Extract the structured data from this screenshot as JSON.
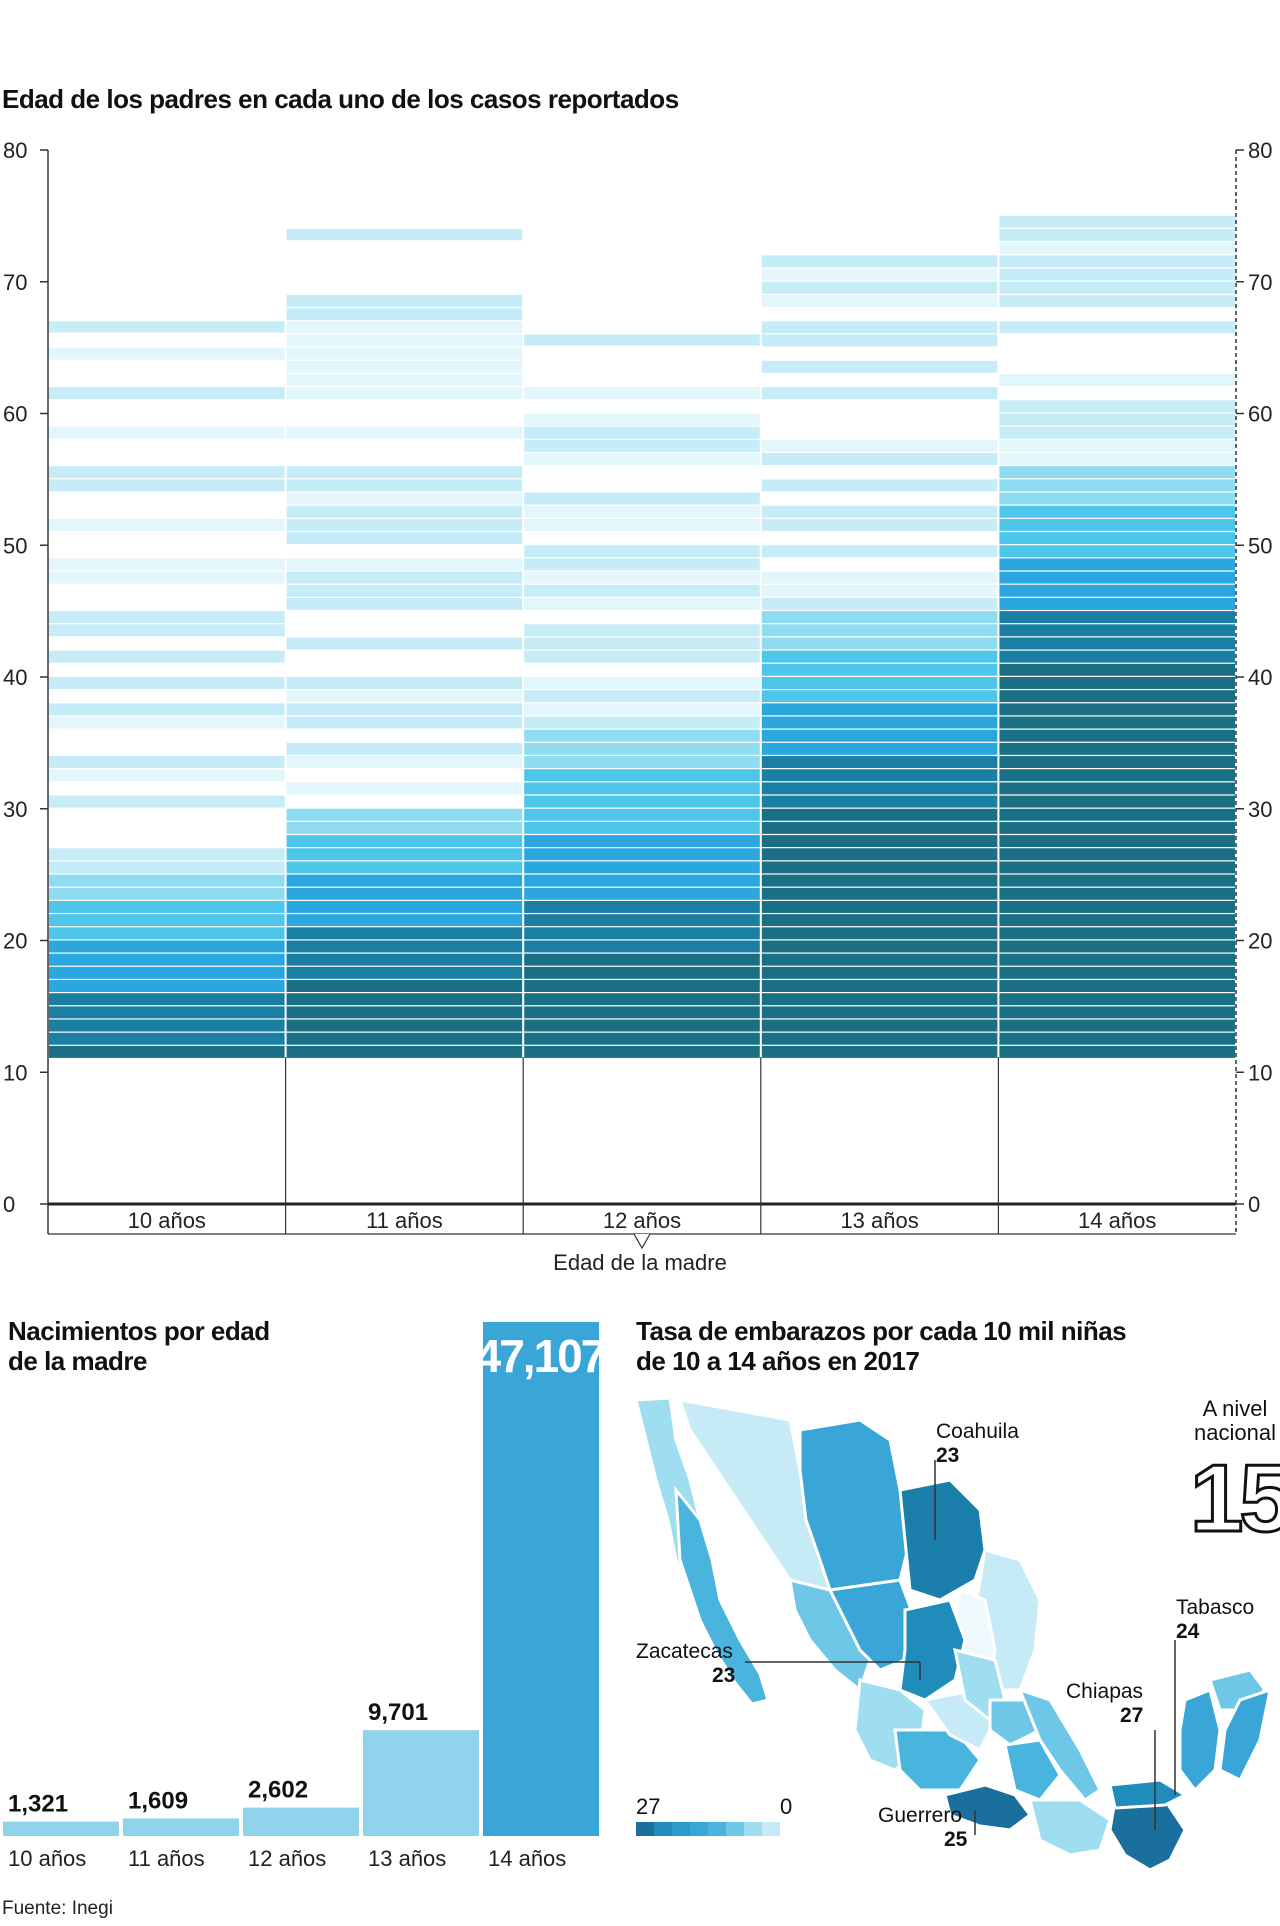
{
  "top_chart": {
    "title": "Edad de los padres en cada uno de los casos reportados",
    "xlabel": "Edad de la madre",
    "yticks": [
      "0",
      "10",
      "20",
      "30",
      "40",
      "50",
      "60",
      "70",
      "80"
    ]
  },
  "bottom_chart": {
    "title_line1": "Nacimientos por edad",
    "title_line2": "de la madre",
    "value_labels": [
      "1,321",
      "1,609",
      "2,602",
      "9,701",
      "47,107"
    ],
    "category_labels": [
      "10 años",
      "11 años",
      "12 años",
      "13 años",
      "14 años"
    ]
  },
  "map": {
    "title_line1": "Tasa de embarazos por cada 10 mil niñas",
    "title_line2": "de 10 a 14 años en 2017",
    "national_label_line1": "A nivel",
    "national_label_line2": "nacional",
    "national_value": "15",
    "legend_max": "27",
    "legend_min": "0",
    "states": [
      {
        "name": "Coahuila",
        "value": "23"
      },
      {
        "name": "Zacatecas",
        "value": "23"
      },
      {
        "name": "Tabasco",
        "value": "24"
      },
      {
        "name": "Chiapas",
        "value": "27"
      },
      {
        "name": "Guerrero",
        "value": "25"
      }
    ]
  },
  "source": "Fuente: Inegi",
  "chart_data": [
    {
      "type": "heatmap",
      "title": "Edad de los padres en cada uno de los casos reportados",
      "xlabel": "Edad de la madre",
      "ylabel": "",
      "categories": [
        "10 años",
        "11 años",
        "12 años",
        "13 años",
        "14 años"
      ],
      "ylim": [
        0,
        80
      ],
      "series": [
        {
          "name": "10 años",
          "father_age_min": 11,
          "father_age_max": 67
        },
        {
          "name": "11 años",
          "father_age_min": 11,
          "father_age_max": 74
        },
        {
          "name": "12 años",
          "father_age_min": 11,
          "father_age_max": 66
        },
        {
          "name": "13 años",
          "father_age_min": 11,
          "father_age_max": 72
        },
        {
          "name": "14 años",
          "father_age_min": 11,
          "father_age_max": 75
        }
      ],
      "colors": [
        "#e3f6fb",
        "#c6ecf7",
        "#8fdcf1",
        "#4dc6ea",
        "#2aa7df",
        "#1b7fa3",
        "#1a6f84"
      ]
    },
    {
      "type": "bar",
      "title": "Nacimientos por edad de la madre",
      "categories": [
        "10 años",
        "11 años",
        "12 años",
        "13 años",
        "14 años"
      ],
      "values": [
        1321,
        1609,
        2602,
        9701,
        47107
      ],
      "ylim": [
        0,
        47107
      ],
      "colors": [
        "#8fd3ec",
        "#8fd3ec",
        "#8fd3ec",
        "#8fd3ec",
        "#3aa6d8"
      ]
    }
  ]
}
